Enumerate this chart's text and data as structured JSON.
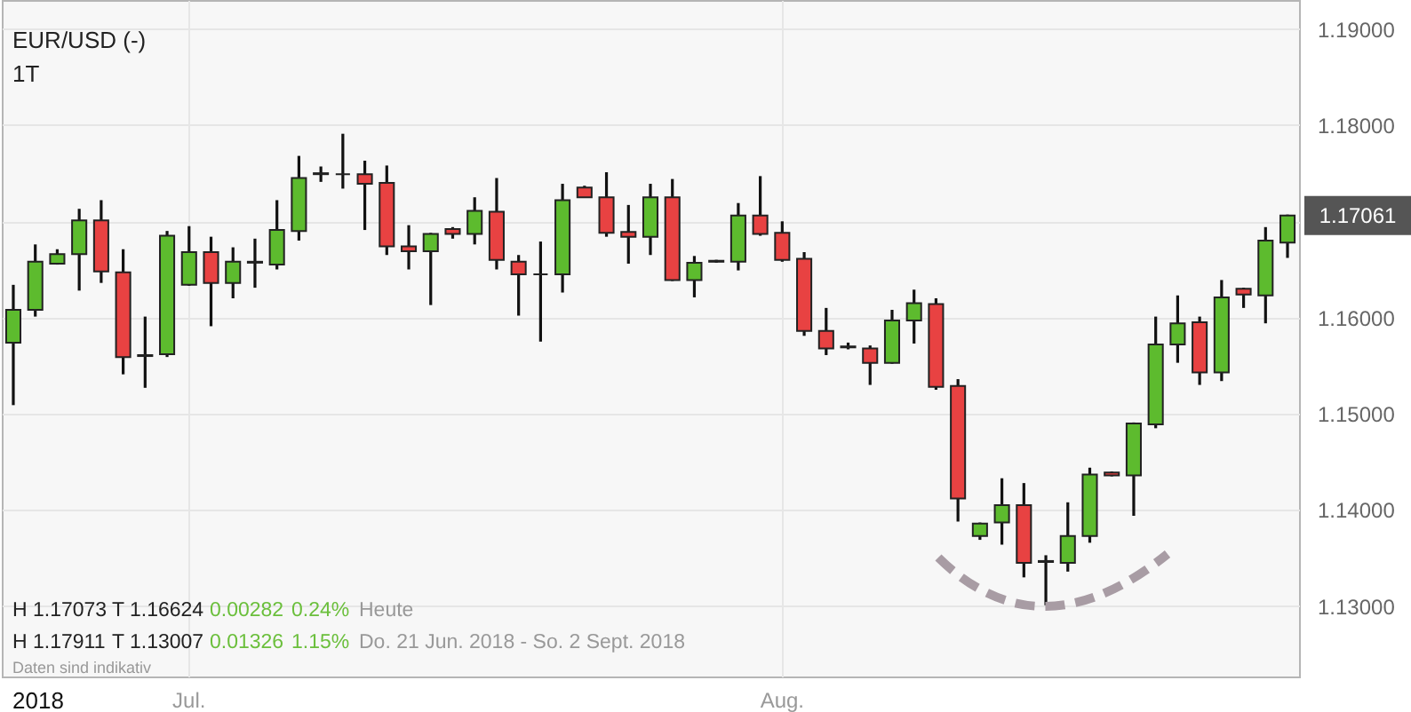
{
  "chart_data": {
    "type": "candlestick",
    "title": "EUR/USD (-)",
    "subtitle": "1T",
    "categories": [
      null,
      null,
      null,
      null,
      null,
      null,
      null,
      null,
      "Jul.",
      null,
      null,
      null,
      null,
      null,
      null,
      null,
      null,
      null,
      null,
      null,
      null,
      null,
      null,
      null,
      null,
      null,
      null,
      null,
      null,
      null,
      null,
      null,
      null,
      null,
      null,
      "Aug.",
      null,
      null,
      null,
      null,
      null,
      null,
      null,
      null,
      null,
      null,
      null,
      null,
      null,
      null,
      null,
      null,
      null,
      null,
      null,
      null,
      null,
      null,
      null
    ],
    "ohlc": [
      [
        1.1574,
        1.1634,
        1.1509,
        1.1608
      ],
      [
        1.1608,
        1.1676,
        1.1601,
        1.1658
      ],
      [
        1.1656,
        1.1671,
        1.1655,
        1.1666
      ],
      [
        1.1666,
        1.1713,
        1.1628,
        1.1701
      ],
      [
        1.1701,
        1.1722,
        1.1636,
        1.1648
      ],
      [
        1.1647,
        1.1671,
        1.1541,
        1.1559
      ],
      [
        1.156,
        1.1601,
        1.1527,
        1.1561
      ],
      [
        1.1562,
        1.169,
        1.1559,
        1.1685
      ],
      [
        1.1634,
        1.1695,
        1.1633,
        1.1668
      ],
      [
        1.1668,
        1.1684,
        1.1591,
        1.1636
      ],
      [
        1.1636,
        1.1673,
        1.162,
        1.1658
      ],
      [
        1.1657,
        1.1682,
        1.1631,
        1.1658
      ],
      [
        1.1655,
        1.1722,
        1.165,
        1.1691
      ],
      [
        1.169,
        1.1768,
        1.168,
        1.1745
      ],
      [
        1.1749,
        1.1757,
        1.1741,
        1.175
      ],
      [
        1.1749,
        1.1791,
        1.1734,
        1.1749
      ],
      [
        1.1749,
        1.1763,
        1.1691,
        1.1739
      ],
      [
        1.174,
        1.1758,
        1.1665,
        1.1674
      ],
      [
        1.1674,
        1.1696,
        1.165,
        1.1669
      ],
      [
        1.1669,
        1.1688,
        1.1613,
        1.1687
      ],
      [
        1.1692,
        1.1694,
        1.1682,
        1.1687
      ],
      [
        1.1687,
        1.1725,
        1.1676,
        1.1711
      ],
      [
        1.171,
        1.1745,
        1.165,
        1.166
      ],
      [
        1.1658,
        1.1665,
        1.1602,
        1.1645
      ],
      [
        1.1645,
        1.1679,
        1.1575,
        1.1645
      ],
      [
        1.1645,
        1.1739,
        1.1626,
        1.1722
      ],
      [
        1.1735,
        1.1737,
        1.1725,
        1.1725
      ],
      [
        1.1725,
        1.1751,
        1.1684,
        1.1688
      ],
      [
        1.1689,
        1.1717,
        1.1656,
        1.1684
      ],
      [
        1.1684,
        1.1739,
        1.1665,
        1.1725
      ],
      [
        1.1725,
        1.1744,
        1.1638,
        1.1639
      ],
      [
        1.1639,
        1.1664,
        1.1621,
        1.1657
      ],
      [
        1.1658,
        1.166,
        1.1657,
        1.1659
      ],
      [
        1.1658,
        1.1719,
        1.1649,
        1.1706
      ],
      [
        1.1706,
        1.1747,
        1.1685,
        1.1687
      ],
      [
        1.1688,
        1.17,
        1.1658,
        1.166
      ],
      [
        1.1661,
        1.1668,
        1.1581,
        1.1586
      ],
      [
        1.1586,
        1.161,
        1.1561,
        1.1568
      ],
      [
        1.1569,
        1.1574,
        1.1567,
        1.157
      ],
      [
        1.1568,
        1.1571,
        1.153,
        1.1553
      ],
      [
        1.1553,
        1.1608,
        1.1552,
        1.1597
      ],
      [
        1.1597,
        1.1629,
        1.1573,
        1.1615
      ],
      [
        1.1614,
        1.162,
        1.1525,
        1.1528
      ],
      [
        1.1529,
        1.1536,
        1.1388,
        1.1412
      ],
      [
        1.1373,
        1.1387,
        1.1369,
        1.1386
      ],
      [
        1.1387,
        1.1433,
        1.1364,
        1.1405
      ],
      [
        1.1405,
        1.1428,
        1.133,
        1.1345
      ],
      [
        1.1346,
        1.1353,
        1.1301,
        1.1347
      ],
      [
        1.1345,
        1.1408,
        1.1336,
        1.1373
      ],
      [
        1.1373,
        1.1444,
        1.1366,
        1.1437
      ],
      [
        1.1439,
        1.144,
        1.1435,
        1.1436
      ],
      [
        1.1436,
        1.1491,
        1.1394,
        1.149
      ],
      [
        1.1489,
        1.1601,
        1.1485,
        1.1572
      ],
      [
        1.1572,
        1.1623,
        1.1553,
        1.1594
      ],
      [
        1.1595,
        1.1601,
        1.153,
        1.1543
      ],
      [
        1.1543,
        1.1639,
        1.1534,
        1.1621
      ],
      [
        1.163,
        1.1631,
        1.161,
        1.1624
      ],
      [
        1.1623,
        1.1694,
        1.1594,
        1.168
      ],
      [
        1.1678,
        1.1707,
        1.1662,
        1.1706
      ]
    ],
    "colors": [
      "#5dbb2e",
      "#5dbb2e",
      "#5dbb2e",
      "#5dbb2e",
      "#e84242",
      "#e84242",
      "#5dbb2e",
      "#5dbb2e",
      "#5dbb2e",
      "#e84242",
      "#5dbb2e",
      "#5dbb2e",
      "#5dbb2e",
      "#5dbb2e",
      "#5dbb2e",
      "#222222",
      "#e84242",
      "#e84242",
      "#e84242",
      "#5dbb2e",
      "#e84242",
      "#5dbb2e",
      "#e84242",
      "#e84242",
      "#222222",
      "#5dbb2e",
      "#e84242",
      "#e84242",
      "#e84242",
      "#5dbb2e",
      "#e84242",
      "#5dbb2e",
      "#5dbb2e",
      "#5dbb2e",
      "#e84242",
      "#e84242",
      "#e84242",
      "#e84242",
      "#5dbb2e",
      "#e84242",
      "#5dbb2e",
      "#5dbb2e",
      "#e84242",
      "#e84242",
      "#5dbb2e",
      "#5dbb2e",
      "#e84242",
      "#5dbb2e",
      "#5dbb2e",
      "#5dbb2e",
      "#e84242",
      "#5dbb2e",
      "#5dbb2e",
      "#5dbb2e",
      "#e84242",
      "#5dbb2e",
      "#e84242",
      "#5dbb2e",
      "#5dbb2e"
    ],
    "ylim": [
      1.1227,
      1.193
    ],
    "yticks": [
      {
        "value": 1.13,
        "label": "1.13000"
      },
      {
        "value": 1.14,
        "label": "1.14000"
      },
      {
        "value": 1.15,
        "label": "1.15000"
      },
      {
        "value": 1.16,
        "label": "1.16000"
      },
      {
        "value": 1.17,
        "label": null
      },
      {
        "value": 1.18,
        "label": "1.18000"
      },
      {
        "value": 1.19,
        "label": "1.19000"
      }
    ],
    "grid": true,
    "annotations": [
      "H 1.17073",
      "T 1.16624",
      "0.00282",
      "0.24%",
      "Heute",
      "H 1.17911",
      "T 1.13007",
      "0.01326",
      "1.15%",
      "Do. 21 Jun. 2018 - So. 2 Sept. 2018",
      "Daten sind indikativ",
      "2018",
      "1.17061"
    ]
  }
}
